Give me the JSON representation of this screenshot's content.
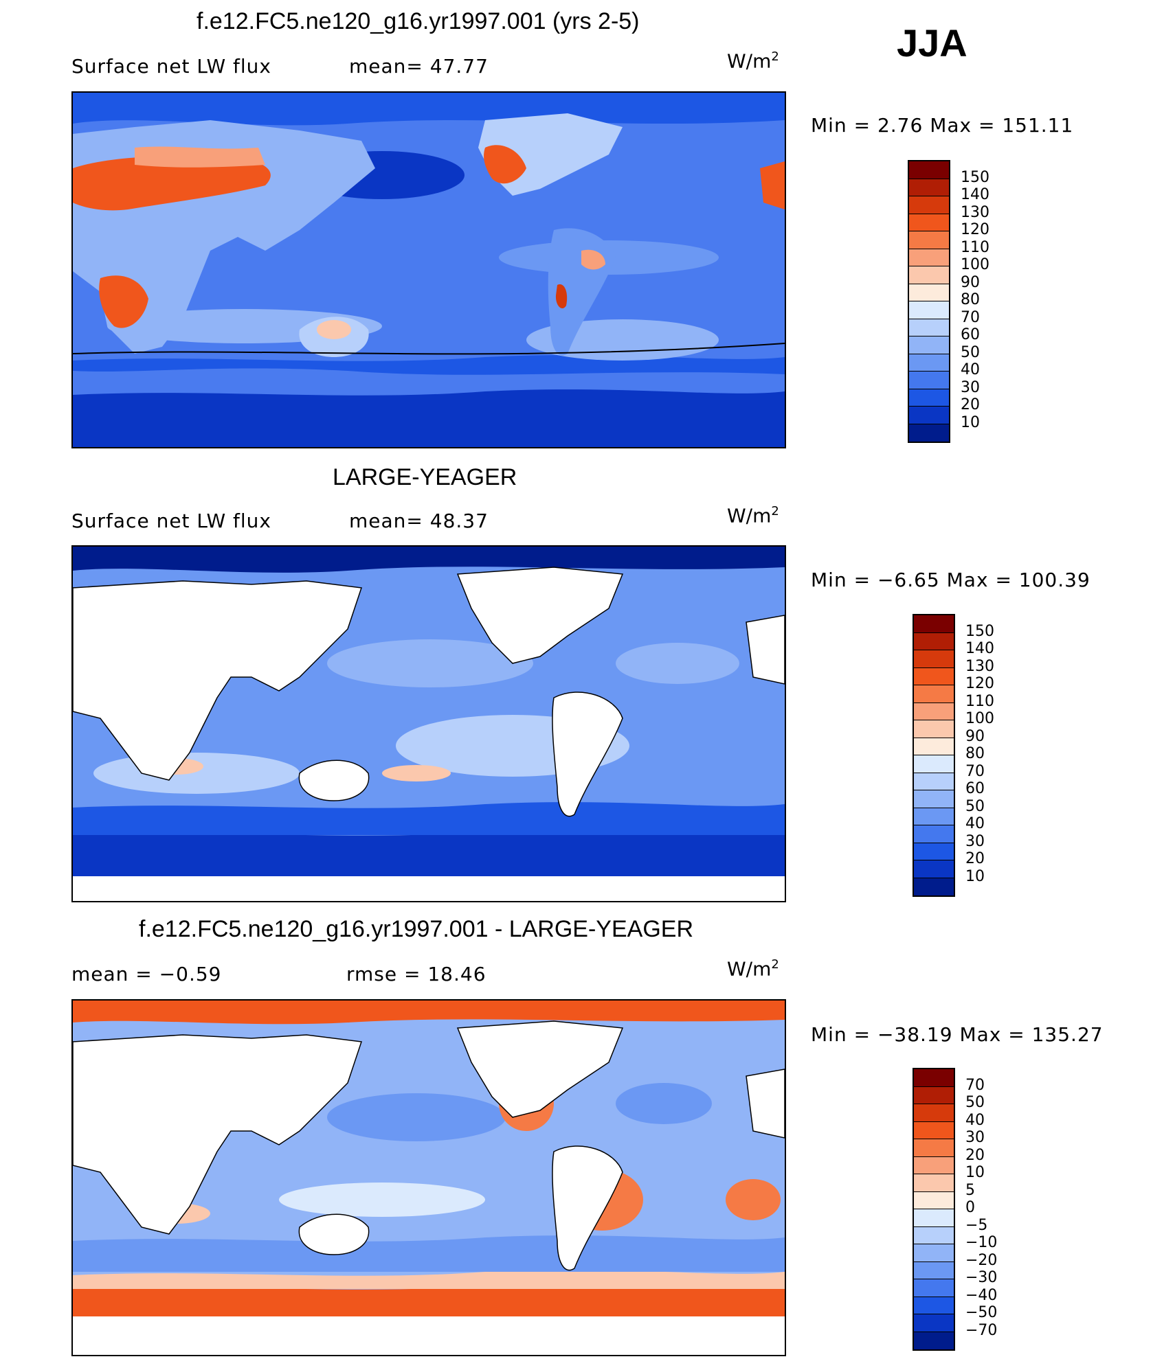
{
  "season": "JJA",
  "panels": [
    {
      "title": "f.e12.FC5.ne120_g16.yr1997.001 (yrs 2-5)",
      "left_text": "Surface net LW flux",
      "mid_text": "mean=   47.77",
      "units": "W/m",
      "units_exp": "2",
      "minmax": "Min  =      2.76  Max  =  151.11",
      "colorbar": {
        "labels": [
          "150",
          "140",
          "130",
          "120",
          "110",
          "100",
          "90",
          "80",
          "70",
          "60",
          "50",
          "40",
          "30",
          "20",
          "10"
        ],
        "colors": [
          "#7a0000",
          "#b01e05",
          "#d63a0c",
          "#f0561c",
          "#f57a45",
          "#f8a07a",
          "#fbc8ad",
          "#fdebdc",
          "#dbeafd",
          "#b7d0fb",
          "#91b4f7",
          "#6b98f3",
          "#4478ee",
          "#1d57e4",
          "#0a36c4",
          "#001c8c"
        ]
      }
    },
    {
      "title": "LARGE-YEAGER",
      "left_text": "Surface net LW flux",
      "mid_text": "mean=   48.37",
      "units": "W/m",
      "units_exp": "2",
      "minmax": "Min  =    −6.65  Max  =  100.39",
      "colorbar": {
        "labels": [
          "150",
          "140",
          "130",
          "120",
          "110",
          "100",
          "90",
          "80",
          "70",
          "60",
          "50",
          "40",
          "30",
          "20",
          "10"
        ],
        "colors": [
          "#7a0000",
          "#b01e05",
          "#d63a0c",
          "#f0561c",
          "#f57a45",
          "#f8a07a",
          "#fbc8ad",
          "#fdebdc",
          "#dbeafd",
          "#b7d0fb",
          "#91b4f7",
          "#6b98f3",
          "#4478ee",
          "#1d57e4",
          "#0a36c4",
          "#001c8c"
        ]
      }
    },
    {
      "title": "f.e12.FC5.ne120_g16.yr1997.001 - LARGE-YEAGER",
      "left_text": "mean  =    −0.59",
      "mid_text": "rmse  =    18.46",
      "units": "W/m",
      "units_exp": "2",
      "minmax": "Min  =  −38.19  Max  =  135.27",
      "colorbar": {
        "labels": [
          "70",
          "50",
          "40",
          "30",
          "20",
          "10",
          "5",
          "0",
          "−5",
          "−10",
          "−20",
          "−30",
          "−40",
          "−50",
          "−70"
        ],
        "colors": [
          "#7a0000",
          "#b01e05",
          "#d63a0c",
          "#f0561c",
          "#f57a45",
          "#f8a07a",
          "#fbc8ad",
          "#fdebdc",
          "#dbeafd",
          "#b7d0fb",
          "#91b4f7",
          "#6b98f3",
          "#4478ee",
          "#1d57e4",
          "#0a36c4",
          "#001c8c"
        ]
      }
    }
  ],
  "chart_data": [
    {
      "type": "heatmap",
      "title": "f.e12.FC5.ne120_g16.yr1997.001 (yrs 2-5)",
      "variable": "Surface net LW flux",
      "units": "W/m2",
      "mean": 47.77,
      "min": 2.76,
      "max": 151.11,
      "contour_levels": [
        10,
        20,
        30,
        40,
        50,
        60,
        70,
        80,
        90,
        100,
        110,
        120,
        130,
        140,
        150
      ]
    },
    {
      "type": "heatmap",
      "title": "LARGE-YEAGER",
      "variable": "Surface net LW flux",
      "units": "W/m2",
      "mean": 48.37,
      "min": -6.65,
      "max": 100.39,
      "contour_levels": [
        10,
        20,
        30,
        40,
        50,
        60,
        70,
        80,
        90,
        100,
        110,
        120,
        130,
        140,
        150
      ]
    },
    {
      "type": "heatmap",
      "title": "f.e12.FC5.ne120_g16.yr1997.001 - LARGE-YEAGER",
      "units": "W/m2",
      "mean": -0.59,
      "rmse": 18.46,
      "min": -38.19,
      "max": 135.27,
      "contour_levels": [
        -70,
        -50,
        -40,
        -30,
        -20,
        -10,
        -5,
        0,
        5,
        10,
        20,
        30,
        40,
        50,
        70
      ]
    }
  ]
}
